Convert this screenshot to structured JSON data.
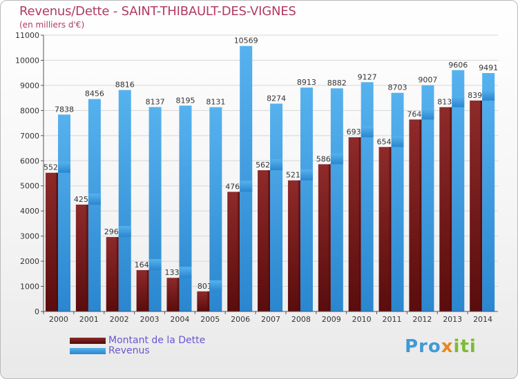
{
  "chart_data": {
    "type": "bar",
    "title": "Revenus/Dette - SAINT-THIBAULT-DES-VIGNES",
    "subtitle": "(en milliers d'€)",
    "xlabel": "",
    "ylabel": "",
    "ylim": [
      0,
      11000
    ],
    "yticks": [
      0,
      1000,
      2000,
      3000,
      4000,
      5000,
      6000,
      7000,
      8000,
      9000,
      10000,
      11000
    ],
    "grid": true,
    "legend_position": "bottom-left",
    "categories": [
      "2000",
      "2001",
      "2002",
      "2003",
      "2004",
      "2005",
      "2006",
      "2007",
      "2008",
      "2009",
      "2010",
      "2011",
      "2012",
      "2013",
      "2014"
    ],
    "series": [
      {
        "name": "Montant de la Dette",
        "color": "#7a1f1f",
        "values": [
          5522,
          4254,
          2963,
          1647,
          1339,
          801,
          4763,
          5623,
          5219,
          5861,
          6935,
          6547,
          7642,
          8133,
          8397
        ],
        "labels": [
          "5522",
          "4254",
          "2963",
          "1647",
          "1339",
          "801",
          "4763",
          "5623",
          "5219",
          "5861",
          "6935",
          "6547",
          "7642",
          "8133",
          "8397"
        ]
      },
      {
        "name": "Revenus",
        "color": "#3d9be0",
        "values": [
          7838,
          8456,
          8816,
          8137,
          8195,
          8131,
          10569,
          8274,
          8913,
          8882,
          9127,
          8703,
          9007,
          9606,
          9491
        ],
        "labels": [
          "7838",
          "8456",
          "8816",
          "8137",
          "8195",
          "8131",
          "10569",
          "8274",
          "8913",
          "8882",
          "9127",
          "8703",
          "9007",
          "9606",
          "9491"
        ]
      }
    ]
  },
  "legend": {
    "debt_label": "Montant de la Dette",
    "revenue_label": "Revenus"
  },
  "logo": {
    "part1": "Pro",
    "part2": "x",
    "part3": "iti"
  }
}
